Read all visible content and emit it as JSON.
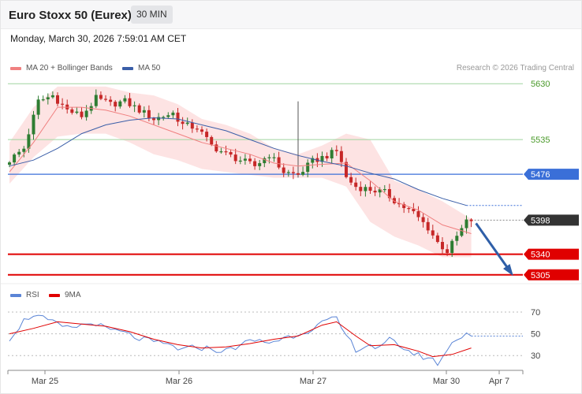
{
  "header": {
    "title": "Euro Stoxx 50 (Eurex)",
    "timeframe": "30 MIN",
    "datetime": "Monday, March 30, 2026 7:59:01 AM CET"
  },
  "legend": {
    "ma20_label": "MA 20 + Bollinger Bands",
    "ma50_label": "MA 50",
    "copyright": "Research © 2026 Trading Central",
    "rsi_label": "RSI",
    "ma9_label": "9MA"
  },
  "colors": {
    "up": "#2e7d32",
    "down": "#c62828",
    "bollinger_fill": "#fde3e3",
    "ma20": "#f08080",
    "ma50": "#3a5ea8",
    "resistance": "#3a6fd8",
    "support": "#e00000",
    "grid_green": "#9fd49f",
    "rsi": "#5b85d6",
    "rsi_ma": "#e00000",
    "arrow": "#2f5fa8",
    "last_tag": "#333333"
  },
  "chart_data": [
    {
      "type": "candlestick",
      "title": "Euro Stoxx 50 (Eurex)",
      "y_axis": {
        "ylim": [
          5290,
          5645
        ],
        "ticks": [
          5630,
          5535
        ]
      },
      "x_axis": {
        "tick_labels": [
          "Mar 25",
          "Mar 26",
          "Mar 27",
          "Mar 30",
          "Apr 7"
        ]
      },
      "levels": [
        {
          "value": 5476,
          "label": "5476",
          "kind": "resistance"
        },
        {
          "value": 5398,
          "label": "5398",
          "kind": "last"
        },
        {
          "value": 5340,
          "label": "5340",
          "kind": "support"
        },
        {
          "value": 5305,
          "label": "5305",
          "kind": "support"
        }
      ],
      "close_path": [
        [
          0,
          5500
        ],
        [
          3,
          5520
        ],
        [
          6,
          5600
        ],
        [
          9,
          5610
        ],
        [
          12,
          5585
        ],
        [
          15,
          5575
        ],
        [
          18,
          5605
        ],
        [
          21,
          5595
        ],
        [
          24,
          5600
        ],
        [
          27,
          5585
        ],
        [
          30,
          5570
        ],
        [
          34,
          5580
        ],
        [
          36,
          5560
        ],
        [
          39,
          5555
        ],
        [
          42,
          5525
        ],
        [
          45,
          5510
        ],
        [
          48,
          5500
        ],
        [
          51,
          5490
        ],
        [
          54,
          5510
        ],
        [
          57,
          5480
        ],
        [
          60,
          5475
        ],
        [
          63,
          5498
        ],
        [
          66,
          5508
        ],
        [
          68,
          5515
        ],
        [
          69,
          5498
        ],
        [
          70,
          5470
        ],
        [
          72,
          5455
        ],
        [
          75,
          5450
        ],
        [
          78,
          5445
        ],
        [
          81,
          5425
        ],
        [
          84,
          5410
        ],
        [
          87,
          5385
        ],
        [
          89,
          5360
        ],
        [
          91,
          5345
        ],
        [
          93,
          5370
        ],
        [
          95,
          5395
        ],
        [
          96,
          5398
        ]
      ],
      "spikes": [
        {
          "index": 60,
          "high": 5600
        }
      ],
      "bollinger": {
        "upper": [
          [
            0,
            5530
          ],
          [
            5,
            5590
          ],
          [
            10,
            5625
          ],
          [
            15,
            5625
          ],
          [
            20,
            5625
          ],
          [
            25,
            5615
          ],
          [
            30,
            5610
          ],
          [
            35,
            5595
          ],
          [
            40,
            5570
          ],
          [
            45,
            5560
          ],
          [
            50,
            5545
          ],
          [
            55,
            5520
          ],
          [
            60,
            5510
          ],
          [
            65,
            5525
          ],
          [
            70,
            5545
          ],
          [
            75,
            5535
          ],
          [
            80,
            5465
          ],
          [
            85,
            5450
          ],
          [
            90,
            5430
          ],
          [
            96,
            5400
          ]
        ],
        "lower": [
          [
            0,
            5460
          ],
          [
            5,
            5505
          ],
          [
            10,
            5540
          ],
          [
            15,
            5545
          ],
          [
            20,
            5545
          ],
          [
            25,
            5530
          ],
          [
            30,
            5510
          ],
          [
            35,
            5500
          ],
          [
            40,
            5485
          ],
          [
            45,
            5480
          ],
          [
            50,
            5475
          ],
          [
            55,
            5470
          ],
          [
            60,
            5470
          ],
          [
            65,
            5470
          ],
          [
            70,
            5455
          ],
          [
            75,
            5395
          ],
          [
            80,
            5370
          ],
          [
            85,
            5355
          ],
          [
            90,
            5335
          ],
          [
            96,
            5335
          ]
        ]
      },
      "ma20": [
        [
          0,
          5480
        ],
        [
          5,
          5530
        ],
        [
          10,
          5590
        ],
        [
          15,
          5590
        ],
        [
          20,
          5585
        ],
        [
          25,
          5575
        ],
        [
          30,
          5560
        ],
        [
          35,
          5545
        ],
        [
          40,
          5530
        ],
        [
          45,
          5520
        ],
        [
          50,
          5510
        ],
        [
          55,
          5495
        ],
        [
          60,
          5490
        ],
        [
          65,
          5493
        ],
        [
          70,
          5495
        ],
        [
          75,
          5465
        ],
        [
          80,
          5430
        ],
        [
          85,
          5415
        ],
        [
          90,
          5390
        ],
        [
          96,
          5375
        ]
      ],
      "ma50": [
        [
          0,
          5490
        ],
        [
          5,
          5500
        ],
        [
          10,
          5520
        ],
        [
          15,
          5545
        ],
        [
          20,
          5560
        ],
        [
          25,
          5568
        ],
        [
          30,
          5572
        ],
        [
          35,
          5570
        ],
        [
          40,
          5560
        ],
        [
          45,
          5550
        ],
        [
          50,
          5535
        ],
        [
          55,
          5520
        ],
        [
          60,
          5508
        ],
        [
          65,
          5498
        ],
        [
          70,
          5490
        ],
        [
          75,
          5478
        ],
        [
          80,
          5468
        ],
        [
          85,
          5450
        ],
        [
          90,
          5435
        ],
        [
          95,
          5423
        ]
      ],
      "projection": {
        "from": [
          96,
          5398
        ],
        "to": [
          105,
          5305
        ]
      }
    },
    {
      "type": "line",
      "series": [
        {
          "name": "RSI",
          "values": [
            [
              0,
              46
            ],
            [
              3,
              62
            ],
            [
              5,
              68
            ],
            [
              7,
              64
            ],
            [
              9,
              60
            ],
            [
              12,
              55
            ],
            [
              15,
              58
            ],
            [
              18,
              60
            ],
            [
              20,
              54
            ],
            [
              23,
              52
            ],
            [
              26,
              47
            ],
            [
              30,
              42
            ],
            [
              33,
              40
            ],
            [
              36,
              35
            ],
            [
              39,
              38
            ],
            [
              42,
              36
            ],
            [
              45,
              34
            ],
            [
              48,
              40
            ],
            [
              51,
              44
            ],
            [
              54,
              42
            ],
            [
              57,
              46
            ],
            [
              60,
              50
            ],
            [
              63,
              55
            ],
            [
              66,
              62
            ],
            [
              68,
              63
            ],
            [
              70,
              48
            ],
            [
              72,
              36
            ],
            [
              75,
              40
            ],
            [
              77,
              36
            ],
            [
              79,
              44
            ],
            [
              81,
              40
            ],
            [
              83,
              34
            ],
            [
              85,
              30
            ],
            [
              87,
              28
            ],
            [
              89,
              23
            ],
            [
              91,
              35
            ],
            [
              93,
              46
            ],
            [
              95,
              51
            ],
            [
              96,
              48
            ]
          ]
        },
        {
          "name": "9MA",
          "values": [
            [
              0,
              50
            ],
            [
              5,
              55
            ],
            [
              10,
              61
            ],
            [
              15,
              59
            ],
            [
              20,
              57
            ],
            [
              25,
              52
            ],
            [
              30,
              45
            ],
            [
              35,
              40
            ],
            [
              40,
              37
            ],
            [
              45,
              38
            ],
            [
              50,
              41
            ],
            [
              55,
              45
            ],
            [
              60,
              48
            ],
            [
              65,
              58
            ],
            [
              68,
              61
            ],
            [
              72,
              48
            ],
            [
              75,
              39
            ],
            [
              80,
              40
            ],
            [
              85,
              34
            ],
            [
              88,
              29
            ],
            [
              92,
              31
            ],
            [
              96,
              37
            ]
          ]
        }
      ],
      "y_axis": {
        "ylim": [
          20,
          78
        ],
        "ticks": [
          70,
          50,
          30
        ]
      }
    }
  ]
}
